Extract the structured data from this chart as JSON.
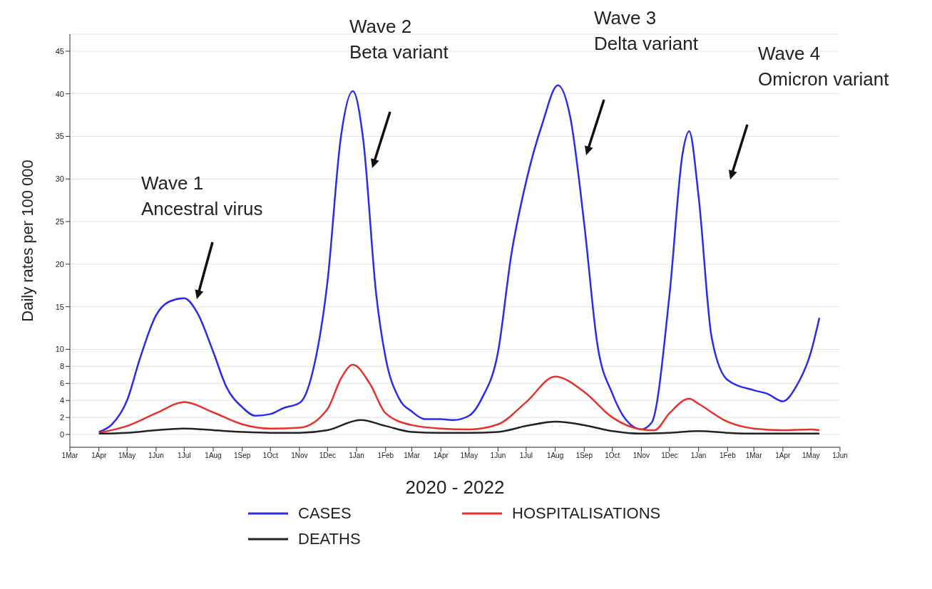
{
  "chart_data": {
    "type": "line",
    "ylabel": "Daily rates per 100 000",
    "xlabel": "2020 - 2022",
    "xlim": [
      "2020-03-01",
      "2022-06-01"
    ],
    "xticks": [
      {
        "value": "2020-03-01",
        "label": "1Mar"
      },
      {
        "value": "2020-04-01",
        "label": "1Apr"
      },
      {
        "value": "2020-05-01",
        "label": "1May"
      },
      {
        "value": "2020-06-01",
        "label": "1Jun"
      },
      {
        "value": "2020-07-01",
        "label": "1Jul"
      },
      {
        "value": "2020-08-01",
        "label": "1Aug"
      },
      {
        "value": "2020-09-01",
        "label": "1Sep"
      },
      {
        "value": "2020-10-01",
        "label": "1Oct"
      },
      {
        "value": "2020-11-01",
        "label": "1Nov"
      },
      {
        "value": "2020-12-01",
        "label": "1Dec"
      },
      {
        "value": "2021-01-01",
        "label": "1Jan"
      },
      {
        "value": "2021-02-01",
        "label": "1Feb"
      },
      {
        "value": "2021-03-01",
        "label": "1Mar"
      },
      {
        "value": "2021-04-01",
        "label": "1Apr"
      },
      {
        "value": "2021-05-01",
        "label": "1May"
      },
      {
        "value": "2021-06-01",
        "label": "1Jun"
      },
      {
        "value": "2021-07-01",
        "label": "1Jul"
      },
      {
        "value": "2021-08-01",
        "label": "1Aug"
      },
      {
        "value": "2021-09-01",
        "label": "1Sep"
      },
      {
        "value": "2021-10-01",
        "label": "1Oct"
      },
      {
        "value": "2021-11-01",
        "label": "1Nov"
      },
      {
        "value": "2021-12-01",
        "label": "1Dec"
      },
      {
        "value": "2022-01-01",
        "label": "1Jan"
      },
      {
        "value": "2022-02-01",
        "label": "1Feb"
      },
      {
        "value": "2022-03-01",
        "label": "1Mar"
      },
      {
        "value": "2022-04-01",
        "label": "1Apr"
      },
      {
        "value": "2022-05-01",
        "label": "1May"
      },
      {
        "value": "2022-06-01",
        "label": "1Jun"
      }
    ],
    "ylim": [
      -1.5,
      47
    ],
    "yticks": [
      0,
      2,
      4,
      6,
      8,
      10,
      15,
      20,
      25,
      30,
      35,
      40,
      45
    ],
    "grid": "y",
    "legend": "bottom",
    "marker": "none",
    "line_style": "solid",
    "series": [
      {
        "name": "CASES",
        "color": "#2b2bf0",
        "x": [
          "2020-04-01",
          "2020-04-15",
          "2020-05-01",
          "2020-05-15",
          "2020-06-01",
          "2020-06-15",
          "2020-07-01",
          "2020-07-15",
          "2020-08-01",
          "2020-08-15",
          "2020-09-01",
          "2020-09-15",
          "2020-10-01",
          "2020-10-15",
          "2020-11-01",
          "2020-11-08",
          "2020-11-15",
          "2020-12-01",
          "2020-12-15",
          "2020-12-28",
          "2021-01-08",
          "2021-01-22",
          "2021-02-01",
          "2021-02-15",
          "2021-03-01",
          "2021-03-15",
          "2021-04-01",
          "2021-04-15",
          "2021-05-01",
          "2021-05-15",
          "2021-06-01",
          "2021-06-15",
          "2021-07-01",
          "2021-07-18",
          "2021-08-04",
          "2021-08-17",
          "2021-09-01",
          "2021-09-15",
          "2021-10-01",
          "2021-10-15",
          "2021-11-01",
          "2021-11-12",
          "2021-12-01",
          "2021-12-15",
          "2021-12-22",
          "2022-01-01",
          "2022-01-15",
          "2022-02-01",
          "2022-03-01",
          "2022-03-15",
          "2022-04-01",
          "2022-04-15",
          "2022-05-01",
          "2022-05-10"
        ],
        "values": [
          0.3,
          1.2,
          4,
          9,
          14,
          15.6,
          16,
          14.3,
          9.7,
          5.6,
          3.2,
          2.2,
          2.4,
          3.1,
          3.7,
          4.8,
          7.3,
          18,
          34.7,
          40.3,
          34.7,
          16.4,
          9,
          4.3,
          2.7,
          1.8,
          1.8,
          1.7,
          2.2,
          4.3,
          9.7,
          21,
          29.7,
          36.4,
          41,
          37.3,
          24.7,
          10.6,
          4.8,
          1.8,
          0.6,
          1.4,
          16.4,
          33,
          35.6,
          28,
          11.4,
          6.4,
          5.2,
          4.8,
          3.9,
          5.6,
          9.7,
          13.7
        ]
      },
      {
        "name": "HOSPITALISATIONS",
        "color": "#e8302a",
        "x": [
          "2020-04-01",
          "2020-05-01",
          "2020-06-01",
          "2020-07-01",
          "2020-08-01",
          "2020-09-01",
          "2020-10-01",
          "2020-11-01",
          "2020-12-01",
          "2020-12-15",
          "2020-12-28",
          "2021-01-15",
          "2021-02-01",
          "2021-03-01",
          "2021-04-01",
          "2021-05-01",
          "2021-06-01",
          "2021-07-01",
          "2021-08-01",
          "2021-09-01",
          "2021-10-01",
          "2021-11-01",
          "2021-11-15",
          "2021-12-01",
          "2021-12-22",
          "2022-01-01",
          "2022-02-01",
          "2022-03-01",
          "2022-04-01",
          "2022-05-01",
          "2022-05-10"
        ],
        "values": [
          0.2,
          1,
          2.5,
          3.8,
          2.6,
          1.2,
          0.7,
          0.8,
          3,
          6.5,
          8.2,
          6,
          2.5,
          1.1,
          0.7,
          0.6,
          1.2,
          3.8,
          6.8,
          5,
          2,
          0.6,
          0.5,
          2.5,
          4.2,
          3.6,
          1.5,
          0.7,
          0.5,
          0.6,
          0.5
        ]
      },
      {
        "name": "DEATHS",
        "color": "#222222",
        "x": [
          "2020-04-01",
          "2020-05-01",
          "2020-06-01",
          "2020-07-01",
          "2020-08-01",
          "2020-09-01",
          "2020-10-01",
          "2020-11-01",
          "2020-12-01",
          "2021-01-05",
          "2021-02-01",
          "2021-03-01",
          "2021-04-01",
          "2021-05-01",
          "2021-06-01",
          "2021-07-01",
          "2021-08-01",
          "2021-09-01",
          "2021-10-01",
          "2021-11-01",
          "2021-12-01",
          "2022-01-01",
          "2022-02-01",
          "2022-03-01",
          "2022-04-01",
          "2022-05-10"
        ],
        "values": [
          0.1,
          0.2,
          0.5,
          0.7,
          0.5,
          0.3,
          0.2,
          0.2,
          0.5,
          1.7,
          1,
          0.3,
          0.2,
          0.2,
          0.3,
          1,
          1.5,
          1.1,
          0.4,
          0.1,
          0.2,
          0.4,
          0.2,
          0.1,
          0.1,
          0.1
        ]
      }
    ],
    "annotations": [
      "Wave 1\nAncestral virus",
      "Wave 2\nBeta variant",
      "Wave 3\nDelta variant",
      "Wave 4\nOmicron variant"
    ]
  }
}
